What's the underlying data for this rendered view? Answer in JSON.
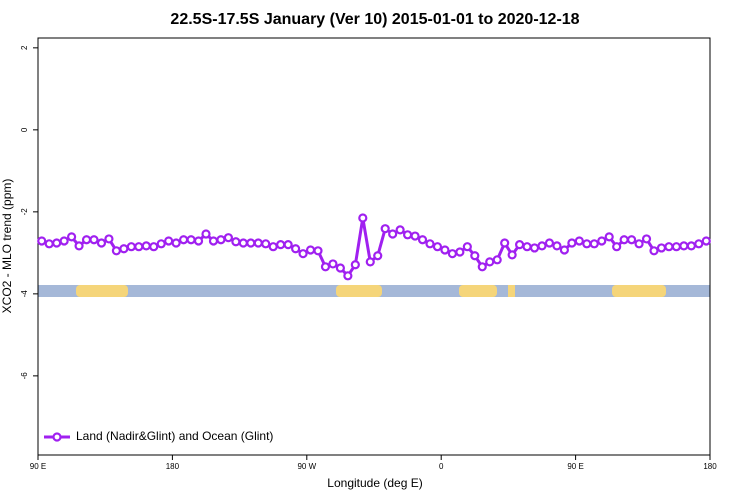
{
  "chart_data": {
    "type": "line",
    "title": "22.5S-17.5S January (Ver 10)   2015-01-01 to 2020-12-18",
    "x_label": "Longitude (deg E)",
    "y_label": "XCO2 - MLO trend (ppm)",
    "x": [
      92.5,
      97.5,
      102.5,
      107.5,
      112.5,
      117.5,
      122.5,
      127.5,
      132.5,
      137.5,
      142.5,
      147.5,
      152.5,
      157.5,
      162.5,
      167.5,
      172.5,
      177.5,
      182.5,
      187.5,
      192.5,
      197.5,
      202.5,
      207.5,
      212.5,
      217.5,
      222.5,
      227.5,
      232.5,
      237.5,
      242.5,
      247.5,
      252.5,
      257.5,
      262.5,
      267.5,
      272.5,
      277.5,
      282.5,
      287.5,
      292.5,
      297.5,
      302.5,
      307.5,
      312.5,
      317.5,
      322.5,
      327.5,
      332.5,
      337.5,
      342.5,
      347.5,
      352.5,
      357.5,
      362.5,
      367.5,
      372.5,
      377.5,
      382.5,
      387.5,
      392.5,
      397.5,
      402.5,
      407.5,
      412.5,
      417.5,
      422.5,
      427.5,
      432.5,
      437.5,
      442.5,
      447.5,
      452.5,
      457.5,
      462.5,
      467.5,
      472.5,
      477.5,
      482.5,
      487.5,
      492.5,
      497.5,
      502.5,
      507.5,
      512.5,
      517.5,
      522.5,
      527.5,
      532.5,
      537.5
    ],
    "series": [
      {
        "name": "Land (Nadir&Glint) and Ocean (Glint)",
        "color": "#a020f0",
        "values": [
          -2.71,
          -2.78,
          -2.76,
          -2.71,
          -2.61,
          -2.83,
          -2.68,
          -2.68,
          -2.76,
          -2.66,
          -2.95,
          -2.9,
          -2.85,
          -2.85,
          -2.83,
          -2.85,
          -2.78,
          -2.71,
          -2.76,
          -2.68,
          -2.68,
          -2.71,
          -2.54,
          -2.71,
          -2.68,
          -2.63,
          -2.73,
          -2.76,
          -2.76,
          -2.76,
          -2.78,
          -2.85,
          -2.8,
          -2.8,
          -2.9,
          -3.02,
          -2.93,
          -2.95,
          -3.34,
          -3.27,
          -3.37,
          -3.56,
          -3.29,
          -2.15,
          -3.22,
          -3.07,
          -2.41,
          -2.54,
          -2.44,
          -2.56,
          -2.59,
          -2.68,
          -2.78,
          -2.85,
          -2.93,
          -3.02,
          -2.98,
          -2.85,
          -3.07,
          -3.34,
          -3.22,
          -3.17,
          -2.76,
          -3.05,
          -2.8,
          -2.85,
          -2.88,
          -2.83,
          -2.76,
          -2.83,
          -2.93,
          -2.76,
          -2.71,
          -2.78,
          -2.78,
          -2.71,
          -2.61,
          -2.85,
          -2.68,
          -2.68,
          -2.78,
          -2.66,
          -2.95,
          -2.88,
          -2.85,
          -2.85,
          -2.83,
          -2.83,
          -2.78,
          -2.71
        ]
      }
    ],
    "xlim": [
      90,
      540
    ],
    "xticks": [
      {
        "value": 90,
        "label": "90 E"
      },
      {
        "value": 180,
        "label": "180"
      },
      {
        "value": 270,
        "label": "90 W"
      },
      {
        "value": 360,
        "label": "0"
      },
      {
        "value": 450,
        "label": "90 E"
      },
      {
        "value": 540,
        "label": "180"
      }
    ],
    "ylim": [
      -7.93,
      2.24
    ],
    "yticks": [
      2,
      0,
      -2,
      -4,
      -6
    ],
    "legend_position": "bottom left"
  }
}
